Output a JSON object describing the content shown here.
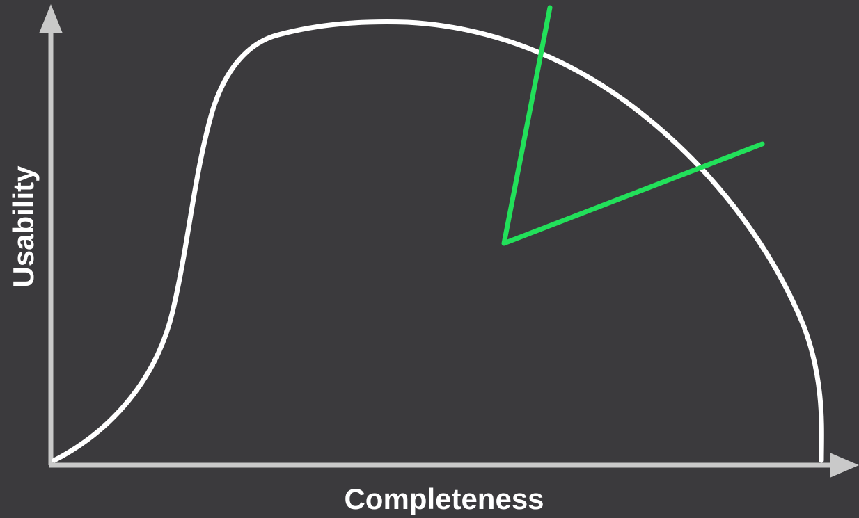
{
  "axes": {
    "x_label": "Completeness",
    "y_label": "Usability"
  },
  "colors": {
    "background": "#3b3a3d",
    "axis": "#c9c9c9",
    "curve": "#ffffff",
    "angle_marker": "#22e05a"
  },
  "icons": [
    "up-arrow-icon",
    "right-arrow-icon"
  ]
}
